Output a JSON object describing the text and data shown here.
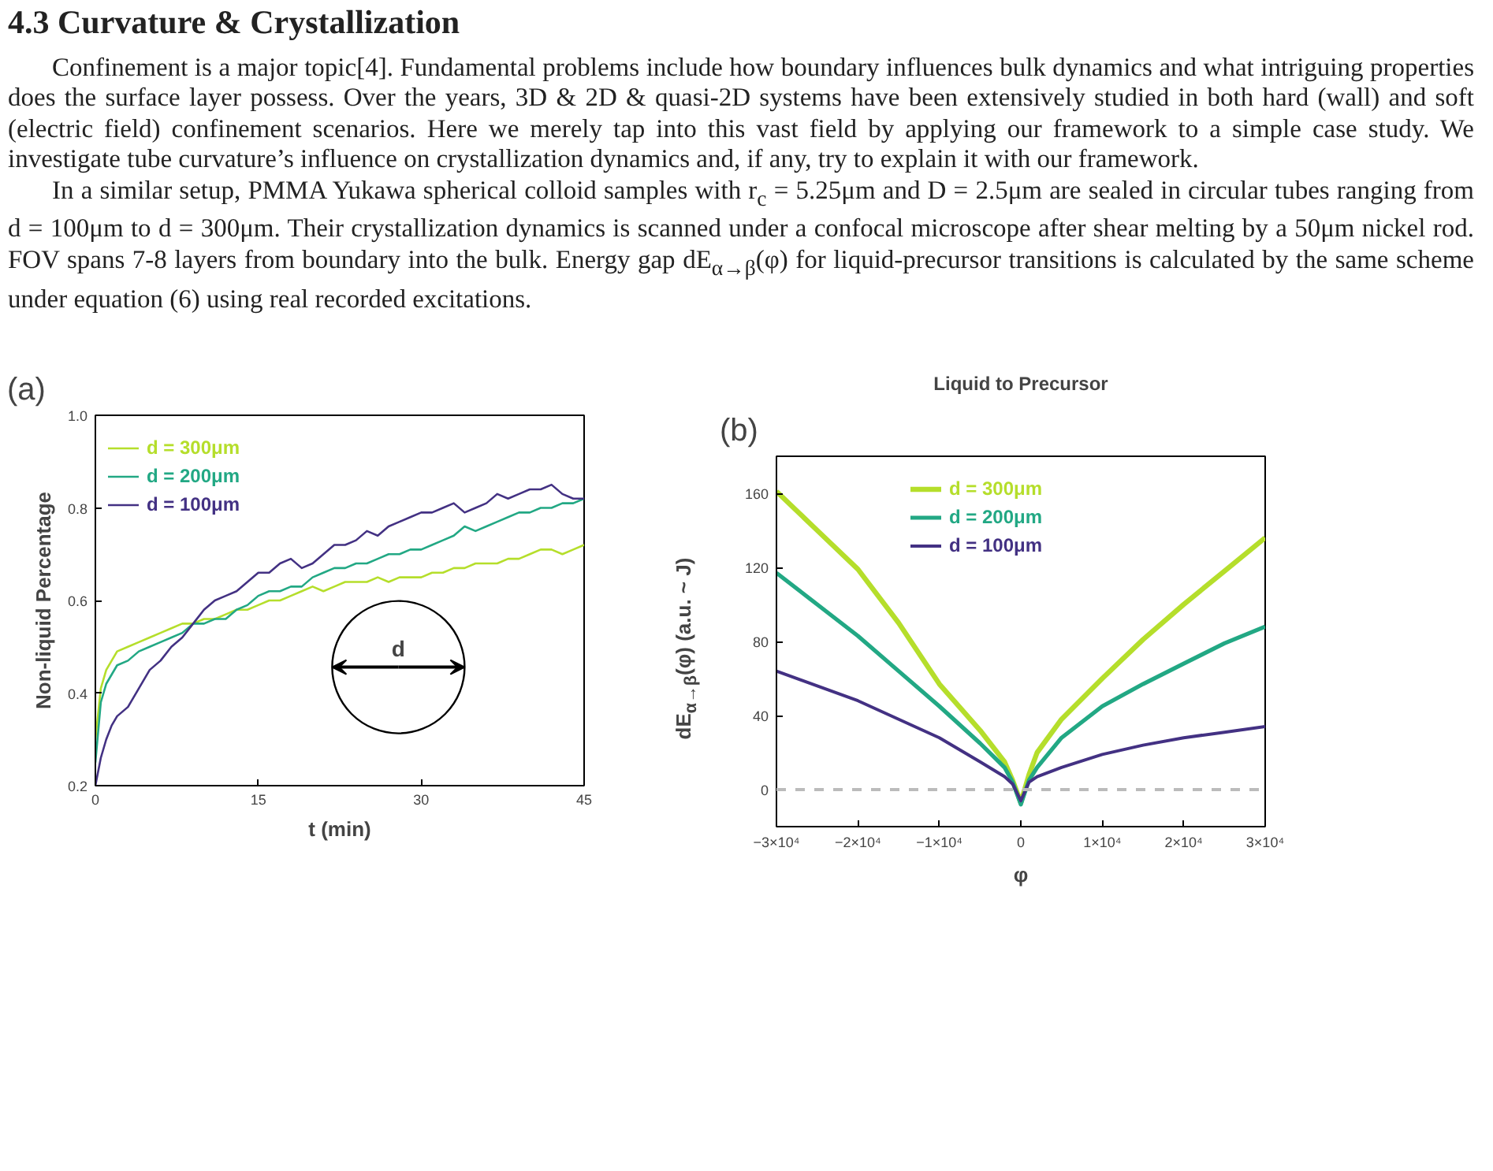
{
  "chart_data": [
    {
      "type": "other",
      "title": "4.3 Curvature & Crystallization",
      "annotations": [
        "Confinement is a major topic[4]. Fundamental problems include how boundary influences bulk dynamics and what intriguing properties does the surface layer possess. Over the years, 3D & 2D & quasi-2D systems have been extensively studied in both hard (wall) and soft (electric field) confinement scenarios. Here we merely tap into this vast field by applying our framework to a simple case study. We investigate tube curvature’s influence on crystallization dynamics and, if any, try to explain it with our framework.",
        "In a similar setup, PMMA Yukawa spherical colloid samples with r$_{c}$ = 5.25μm and D = 2.5μm are sealed in circular tubes ranging from d = 100μm to d = 300μm. Their crystallization dynamics is scanned under a confocal microscope after shear melting by a 50μm nickel rod. FOV spans 7-8 layers from boundary into the bulk. Energy gap dE$_{α→β}$(φ) for liquid-precursor transitions is calculated by the same scheme under equation (6) using real recorded excitations."
      ]
    },
    {
      "type": "line",
      "xlabel": "t (min)",
      "ylabel": "Non-liquid Percentage",
      "annotations": [
        "(a)",
        "d"
      ],
      "xlim": [
        0,
        45
      ],
      "xticks": [
        0,
        15,
        30,
        45
      ],
      "ylim": [
        0.2,
        1.0
      ],
      "yticks": [
        0.2,
        0.4,
        0.6,
        0.8,
        {
          "value": 1.0,
          "label": "1.0"
        }
      ],
      "legend": "top left",
      "grid": false,
      "x": [
        0,
        0.5,
        1,
        1.5,
        2,
        3,
        4,
        5,
        6,
        7,
        8,
        9,
        10,
        11,
        12,
        13,
        14,
        15,
        16,
        17,
        18,
        19,
        20,
        21,
        22,
        23,
        24,
        25,
        26,
        27,
        28,
        29,
        30,
        31,
        32,
        33,
        34,
        35,
        36,
        37,
        38,
        39,
        40,
        41,
        42,
        43,
        44,
        45
      ],
      "series": [
        {
          "name": "d = 300μm",
          "color": "#b5de2b",
          "values": [
            0.3,
            0.41,
            0.45,
            0.47,
            0.49,
            0.5,
            0.51,
            0.52,
            0.53,
            0.54,
            0.55,
            0.55,
            0.56,
            0.56,
            0.57,
            0.58,
            0.58,
            0.59,
            0.6,
            0.6,
            0.61,
            0.62,
            0.63,
            0.62,
            0.63,
            0.64,
            0.64,
            0.64,
            0.65,
            0.64,
            0.65,
            0.65,
            0.65,
            0.66,
            0.66,
            0.67,
            0.67,
            0.68,
            0.68,
            0.68,
            0.69,
            0.69,
            0.7,
            0.71,
            0.71,
            0.7,
            0.71,
            0.72
          ]
        },
        {
          "name": "d = 200μm",
          "color": "#22a884",
          "values": [
            0.25,
            0.38,
            0.42,
            0.44,
            0.46,
            0.47,
            0.49,
            0.5,
            0.51,
            0.52,
            0.53,
            0.55,
            0.55,
            0.56,
            0.56,
            0.58,
            0.59,
            0.61,
            0.62,
            0.62,
            0.63,
            0.63,
            0.65,
            0.66,
            0.67,
            0.67,
            0.68,
            0.68,
            0.69,
            0.7,
            0.7,
            0.71,
            0.71,
            0.72,
            0.73,
            0.74,
            0.76,
            0.75,
            0.76,
            0.77,
            0.78,
            0.79,
            0.79,
            0.8,
            0.8,
            0.81,
            0.81,
            0.82
          ]
        },
        {
          "name": "d = 100μm",
          "color": "#433183",
          "values": [
            0.2,
            0.26,
            0.3,
            0.33,
            0.35,
            0.37,
            0.41,
            0.45,
            0.47,
            0.5,
            0.52,
            0.55,
            0.58,
            0.6,
            0.61,
            0.62,
            0.64,
            0.66,
            0.66,
            0.68,
            0.69,
            0.67,
            0.68,
            0.7,
            0.72,
            0.72,
            0.73,
            0.75,
            0.74,
            0.76,
            0.77,
            0.78,
            0.79,
            0.79,
            0.8,
            0.81,
            0.79,
            0.8,
            0.81,
            0.83,
            0.82,
            0.83,
            0.84,
            0.84,
            0.85,
            0.83,
            0.82,
            0.82
          ]
        }
      ]
    },
    {
      "type": "line",
      "title": "Liquid to Precursor",
      "xlabel": "φ",
      "ylabel": "dE$_{α→β}$(φ) (a.u. ~ J)",
      "annotations": [
        "(b)"
      ],
      "legend": "top",
      "grid": false,
      "xlim": [
        -30000,
        30000
      ],
      "xticks": [
        {
          "value": -30000,
          "label": "−3×10⁴"
        },
        {
          "value": -20000,
          "label": "−2×10⁴"
        },
        {
          "value": -10000,
          "label": "−1×10⁴"
        },
        0,
        {
          "value": 10000,
          "label": "1×10⁴"
        },
        {
          "value": 20000,
          "label": "2×10⁴"
        },
        {
          "value": 30000,
          "label": "3×10⁴"
        }
      ],
      "ylim": [
        -20,
        180
      ],
      "yticks": [
        0,
        40,
        80,
        120,
        160
      ],
      "ref_lines": [
        {
          "axis": "y",
          "value": 0,
          "color": "#bbbbbb",
          "line_style": "dashed"
        }
      ],
      "x": [
        -30000,
        -25000,
        -20000,
        -15000,
        -10000,
        -5000,
        -2000,
        -1000,
        0,
        1000,
        2000,
        5000,
        10000,
        15000,
        20000,
        25000,
        30000
      ],
      "series": [
        {
          "name": "d = 300μm",
          "color": "#b5de2b",
          "values": [
            161,
            140,
            119,
            90,
            57,
            32,
            15,
            5,
            -7,
            8,
            20,
            38,
            60,
            81,
            100,
            118,
            136
          ]
        },
        {
          "name": "d = 200μm",
          "color": "#22a884",
          "values": [
            117,
            100,
            83,
            64,
            45,
            25,
            12,
            4,
            -8,
            5,
            12,
            28,
            45,
            57,
            68,
            79,
            88
          ]
        },
        {
          "name": "d = 100μm",
          "color": "#433183",
          "values": [
            64,
            56,
            48,
            38,
            28,
            15,
            7,
            3,
            -6,
            4,
            7,
            12,
            19,
            24,
            28,
            31,
            34
          ]
        }
      ]
    }
  ]
}
